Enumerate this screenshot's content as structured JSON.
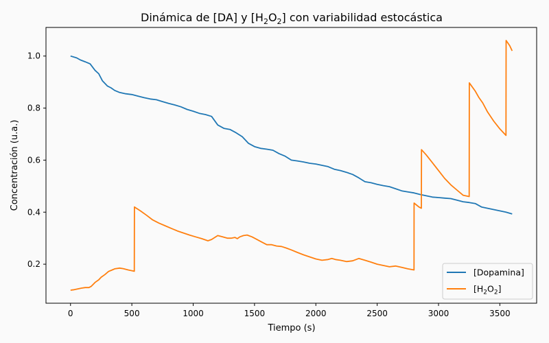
{
  "colors": {
    "dopamina": "#1f77b4",
    "h2o2": "#ff7f0e",
    "background": "#fafafa"
  },
  "chart_data": {
    "type": "line",
    "title": "Dinámica de [DA] y [H₂O₂] con variabilidad estocástica",
    "title_parts": {
      "prefix": "Dinámica de [DA] y [H",
      "sub1": "2",
      "middle": "O",
      "sub2": "2",
      "suffix": "] con variabilidad estocástica"
    },
    "xlabel": "Tiempo (s)",
    "ylabel": "Concentración (u.a.)",
    "xlim": [
      -200,
      3800
    ],
    "ylim": [
      0.05,
      1.11
    ],
    "xticks": [
      0,
      500,
      1000,
      1500,
      2000,
      2500,
      3000,
      3500
    ],
    "xtick_labels": [
      "0",
      "500",
      "1000",
      "1500",
      "2000",
      "2500",
      "3000",
      "3500"
    ],
    "yticks": [
      0.2,
      0.4,
      0.6,
      0.8,
      1.0
    ],
    "ytick_labels": [
      "0.2",
      "0.4",
      "0.6",
      "0.8",
      "1.0"
    ],
    "grid": false,
    "legend_position": "lower right",
    "series": [
      {
        "name": "[Dopamina]",
        "legend_parts": {
          "prefix": "[Dopamina]"
        },
        "x": [
          0,
          50,
          80,
          120,
          160,
          200,
          230,
          260,
          300,
          330,
          360,
          400,
          450,
          500,
          550,
          600,
          650,
          700,
          750,
          800,
          850,
          900,
          950,
          1000,
          1050,
          1100,
          1150,
          1200,
          1250,
          1300,
          1350,
          1400,
          1450,
          1500,
          1550,
          1600,
          1650,
          1700,
          1750,
          1800,
          1850,
          1900,
          1950,
          2000,
          2050,
          2100,
          2150,
          2200,
          2250,
          2300,
          2350,
          2400,
          2450,
          2500,
          2550,
          2600,
          2650,
          2700,
          2750,
          2800,
          2850,
          2900,
          2950,
          3000,
          3050,
          3100,
          3150,
          3200,
          3250,
          3300,
          3350,
          3400,
          3450,
          3500,
          3550,
          3600
        ],
        "y": [
          1.0,
          0.993,
          0.985,
          0.978,
          0.97,
          0.945,
          0.932,
          0.905,
          0.885,
          0.878,
          0.868,
          0.86,
          0.855,
          0.852,
          0.846,
          0.84,
          0.835,
          0.832,
          0.825,
          0.818,
          0.812,
          0.805,
          0.795,
          0.788,
          0.78,
          0.775,
          0.768,
          0.735,
          0.722,
          0.718,
          0.705,
          0.69,
          0.665,
          0.652,
          0.645,
          0.642,
          0.638,
          0.625,
          0.615,
          0.6,
          0.597,
          0.593,
          0.588,
          0.585,
          0.58,
          0.575,
          0.565,
          0.56,
          0.553,
          0.545,
          0.532,
          0.517,
          0.513,
          0.507,
          0.502,
          0.498,
          0.49,
          0.482,
          0.478,
          0.474,
          0.468,
          0.463,
          0.458,
          0.456,
          0.454,
          0.452,
          0.446,
          0.44,
          0.437,
          0.433,
          0.42,
          0.415,
          0.41,
          0.405,
          0.4,
          0.393
        ]
      },
      {
        "name": "[H₂O₂]",
        "legend_parts": {
          "prefix": "[H",
          "sub1": "2",
          "middle": "O",
          "sub2": "2",
          "suffix": "]"
        },
        "x": [
          0,
          30,
          60,
          90,
          120,
          150,
          170,
          200,
          230,
          250,
          280,
          310,
          340,
          360,
          400,
          430,
          470,
          520,
          521,
          570,
          620,
          670,
          720,
          770,
          820,
          870,
          920,
          970,
          1020,
          1070,
          1120,
          1150,
          1200,
          1240,
          1280,
          1310,
          1340,
          1360,
          1380,
          1410,
          1440,
          1480,
          1520,
          1560,
          1600,
          1640,
          1680,
          1720,
          1760,
          1800,
          1850,
          1900,
          1950,
          2000,
          2050,
          2100,
          2130,
          2160,
          2200,
          2250,
          2300,
          2350,
          2400,
          2450,
          2500,
          2550,
          2600,
          2650,
          2700,
          2750,
          2800,
          2801,
          2840,
          2860,
          2861,
          2900,
          2950,
          3000,
          3050,
          3100,
          3150,
          3200,
          3250,
          3251,
          3300,
          3330,
          3360,
          3400,
          3450,
          3500,
          3550,
          3551,
          3580,
          3600
        ],
        "y": [
          0.1,
          0.102,
          0.105,
          0.108,
          0.11,
          0.11,
          0.115,
          0.13,
          0.14,
          0.15,
          0.16,
          0.172,
          0.178,
          0.182,
          0.185,
          0.183,
          0.178,
          0.173,
          0.42,
          0.405,
          0.388,
          0.37,
          0.358,
          0.348,
          0.338,
          0.328,
          0.32,
          0.312,
          0.305,
          0.298,
          0.29,
          0.295,
          0.31,
          0.305,
          0.3,
          0.3,
          0.303,
          0.298,
          0.305,
          0.31,
          0.312,
          0.305,
          0.295,
          0.285,
          0.275,
          0.275,
          0.27,
          0.268,
          0.262,
          0.255,
          0.245,
          0.236,
          0.228,
          0.22,
          0.215,
          0.218,
          0.222,
          0.218,
          0.215,
          0.21,
          0.213,
          0.222,
          0.215,
          0.208,
          0.2,
          0.195,
          0.19,
          0.193,
          0.188,
          0.182,
          0.178,
          0.435,
          0.42,
          0.415,
          0.64,
          0.62,
          0.59,
          0.56,
          0.53,
          0.505,
          0.485,
          0.465,
          0.46,
          0.897,
          0.865,
          0.84,
          0.82,
          0.785,
          0.75,
          0.72,
          0.695,
          1.06,
          1.04,
          1.02
        ]
      }
    ]
  }
}
